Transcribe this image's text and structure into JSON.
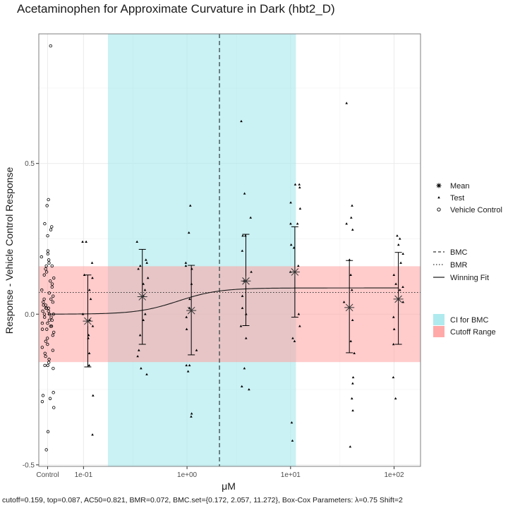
{
  "chart_data": {
    "type": "scatter",
    "title": "Acetaminophen for Approximate Curvature in Dark (hbt2_D)",
    "xlabel": "μM",
    "ylabel": "Response - Vehicle Control Response",
    "caption": "cutoff=0.159, top=0.087, AC50=0.821, BMR=0.072, BMC.set={0.172, 2.057, 11.272}, Box-Cox Parameters: λ=0.75 Shift=2",
    "x_scale": "log10",
    "xlim": [
      0.037,
      180
    ],
    "ylim": [
      -0.505,
      0.93
    ],
    "x_ticks": [
      {
        "label": "Control",
        "value": 0.045
      },
      {
        "label": "1e-01",
        "value": 0.1
      },
      {
        "label": "1e+00",
        "value": 1
      },
      {
        "label": "1e+01",
        "value": 10
      },
      {
        "label": "1e+02",
        "value": 100
      }
    ],
    "y_ticks": [
      {
        "label": "-0.5",
        "value": -0.5
      },
      {
        "label": "0.0",
        "value": 0
      },
      {
        "label": "0.5",
        "value": 0.5
      }
    ],
    "grid": true,
    "cutoff": 0.159,
    "bmr": 0.072,
    "bmc": 2.057,
    "bmc_ci": [
      0.172,
      11.272
    ],
    "winning_fit": {
      "model": "hill",
      "top": 0.087,
      "ac50": 0.821,
      "n": 2.2
    },
    "control_x": 0.045,
    "vehicle_control": [
      0.89,
      0.38,
      0.36,
      0.3,
      0.29,
      0.28,
      0.26,
      0.21,
      0.2,
      0.19,
      0.18,
      0.17,
      0.16,
      0.16,
      0.15,
      0.14,
      0.13,
      0.12,
      0.11,
      0.1,
      0.09,
      0.08,
      0.07,
      0.06,
      0.05,
      0.05,
      0.04,
      0.04,
      0.03,
      0.03,
      0.02,
      0.02,
      0.02,
      0.01,
      0.01,
      0.0,
      0.0,
      0.0,
      -0.01,
      -0.01,
      -0.02,
      -0.02,
      -0.03,
      -0.03,
      -0.04,
      -0.04,
      -0.05,
      -0.05,
      -0.06,
      -0.07,
      -0.08,
      -0.09,
      -0.1,
      -0.11,
      -0.12,
      -0.13,
      -0.14,
      -0.15,
      -0.16,
      -0.17,
      -0.17,
      -0.18,
      -0.26,
      -0.27,
      -0.28,
      -0.29,
      -0.31,
      -0.39,
      -0.45
    ],
    "test": [
      {
        "x": 0.11,
        "values": [
          0.24,
          0.24,
          0.17,
          0.13,
          0.12,
          0.08,
          0.05,
          0.0,
          -0.02,
          -0.04,
          -0.07,
          -0.08,
          -0.13,
          -0.17,
          -0.27,
          -0.4
        ]
      },
      {
        "x": 0.37,
        "values": [
          0.24,
          0.18,
          0.17,
          0.16,
          0.15,
          0.12,
          0.1,
          0.08,
          0.06,
          0.0,
          -0.02,
          -0.07,
          -0.12,
          -0.14,
          -0.18,
          -0.2
        ]
      },
      {
        "x": 1.1,
        "values": [
          0.36,
          0.27,
          0.17,
          0.16,
          0.15,
          0.1,
          0.05,
          0.02,
          -0.01,
          -0.05,
          -0.12,
          -0.17,
          -0.19,
          -0.33,
          -0.34,
          -0.17
        ]
      },
      {
        "x": 3.7,
        "values": [
          0.64,
          0.4,
          0.32,
          0.26,
          0.26,
          0.21,
          0.14,
          0.11,
          0.06,
          0.0,
          -0.04,
          -0.08,
          -0.18,
          -0.24,
          -0.25,
          0.02
        ]
      },
      {
        "x": 11,
        "values": [
          0.43,
          0.43,
          0.42,
          0.37,
          0.35,
          0.3,
          0.3,
          0.23,
          0.22,
          0.16,
          0.14,
          0.0,
          -0.04,
          -0.08,
          -0.09,
          -0.36,
          -0.42
        ]
      },
      {
        "x": 37,
        "values": [
          0.7,
          0.36,
          0.32,
          0.3,
          0.28,
          0.18,
          0.13,
          0.08,
          0.04,
          -0.02,
          -0.09,
          -0.13,
          -0.21,
          -0.23,
          -0.28,
          -0.32,
          -0.44
        ]
      },
      {
        "x": 110,
        "values": [
          0.26,
          0.25,
          0.23,
          0.2,
          0.17,
          0.13,
          0.1,
          0.09,
          0.08,
          0.04,
          -0.01,
          -0.05,
          -0.1,
          -0.21,
          -0.28
        ]
      }
    ],
    "means": [
      {
        "x": 0.11,
        "mean": -0.023,
        "lower": -0.175,
        "upper": 0.13
      },
      {
        "x": 0.37,
        "mean": 0.058,
        "lower": -0.1,
        "upper": 0.215
      },
      {
        "x": 1.1,
        "mean": 0.012,
        "lower": -0.135,
        "upper": 0.162
      },
      {
        "x": 3.7,
        "mean": 0.11,
        "lower": -0.038,
        "upper": 0.265
      },
      {
        "x": 11,
        "mean": 0.14,
        "lower": -0.01,
        "upper": 0.29
      },
      {
        "x": 37,
        "mean": 0.022,
        "lower": -0.128,
        "upper": 0.178
      },
      {
        "x": 110,
        "mean": 0.05,
        "lower": -0.1,
        "upper": 0.205
      }
    ],
    "colors": {
      "ci_band": "#a6e8ec",
      "cutoff_band": "#ffa0a0",
      "points": "#000000",
      "grid": "#ebebeb",
      "panel_border": "#7f7f7f"
    },
    "legend": {
      "position": "right",
      "points": [
        {
          "symbol": "mean",
          "label": "Mean"
        },
        {
          "symbol": "test",
          "label": "Test"
        },
        {
          "symbol": "vehicle",
          "label": "Vehicle Control"
        }
      ],
      "lines": [
        {
          "style": "dashed",
          "label": "BMC"
        },
        {
          "style": "dotted",
          "label": "BMR"
        },
        {
          "style": "solid",
          "label": "Winning Fit"
        }
      ],
      "fills": [
        {
          "fill": "ci",
          "label": "CI for BMC"
        },
        {
          "fill": "cutoff",
          "label": "Cutoff Range"
        }
      ]
    }
  }
}
